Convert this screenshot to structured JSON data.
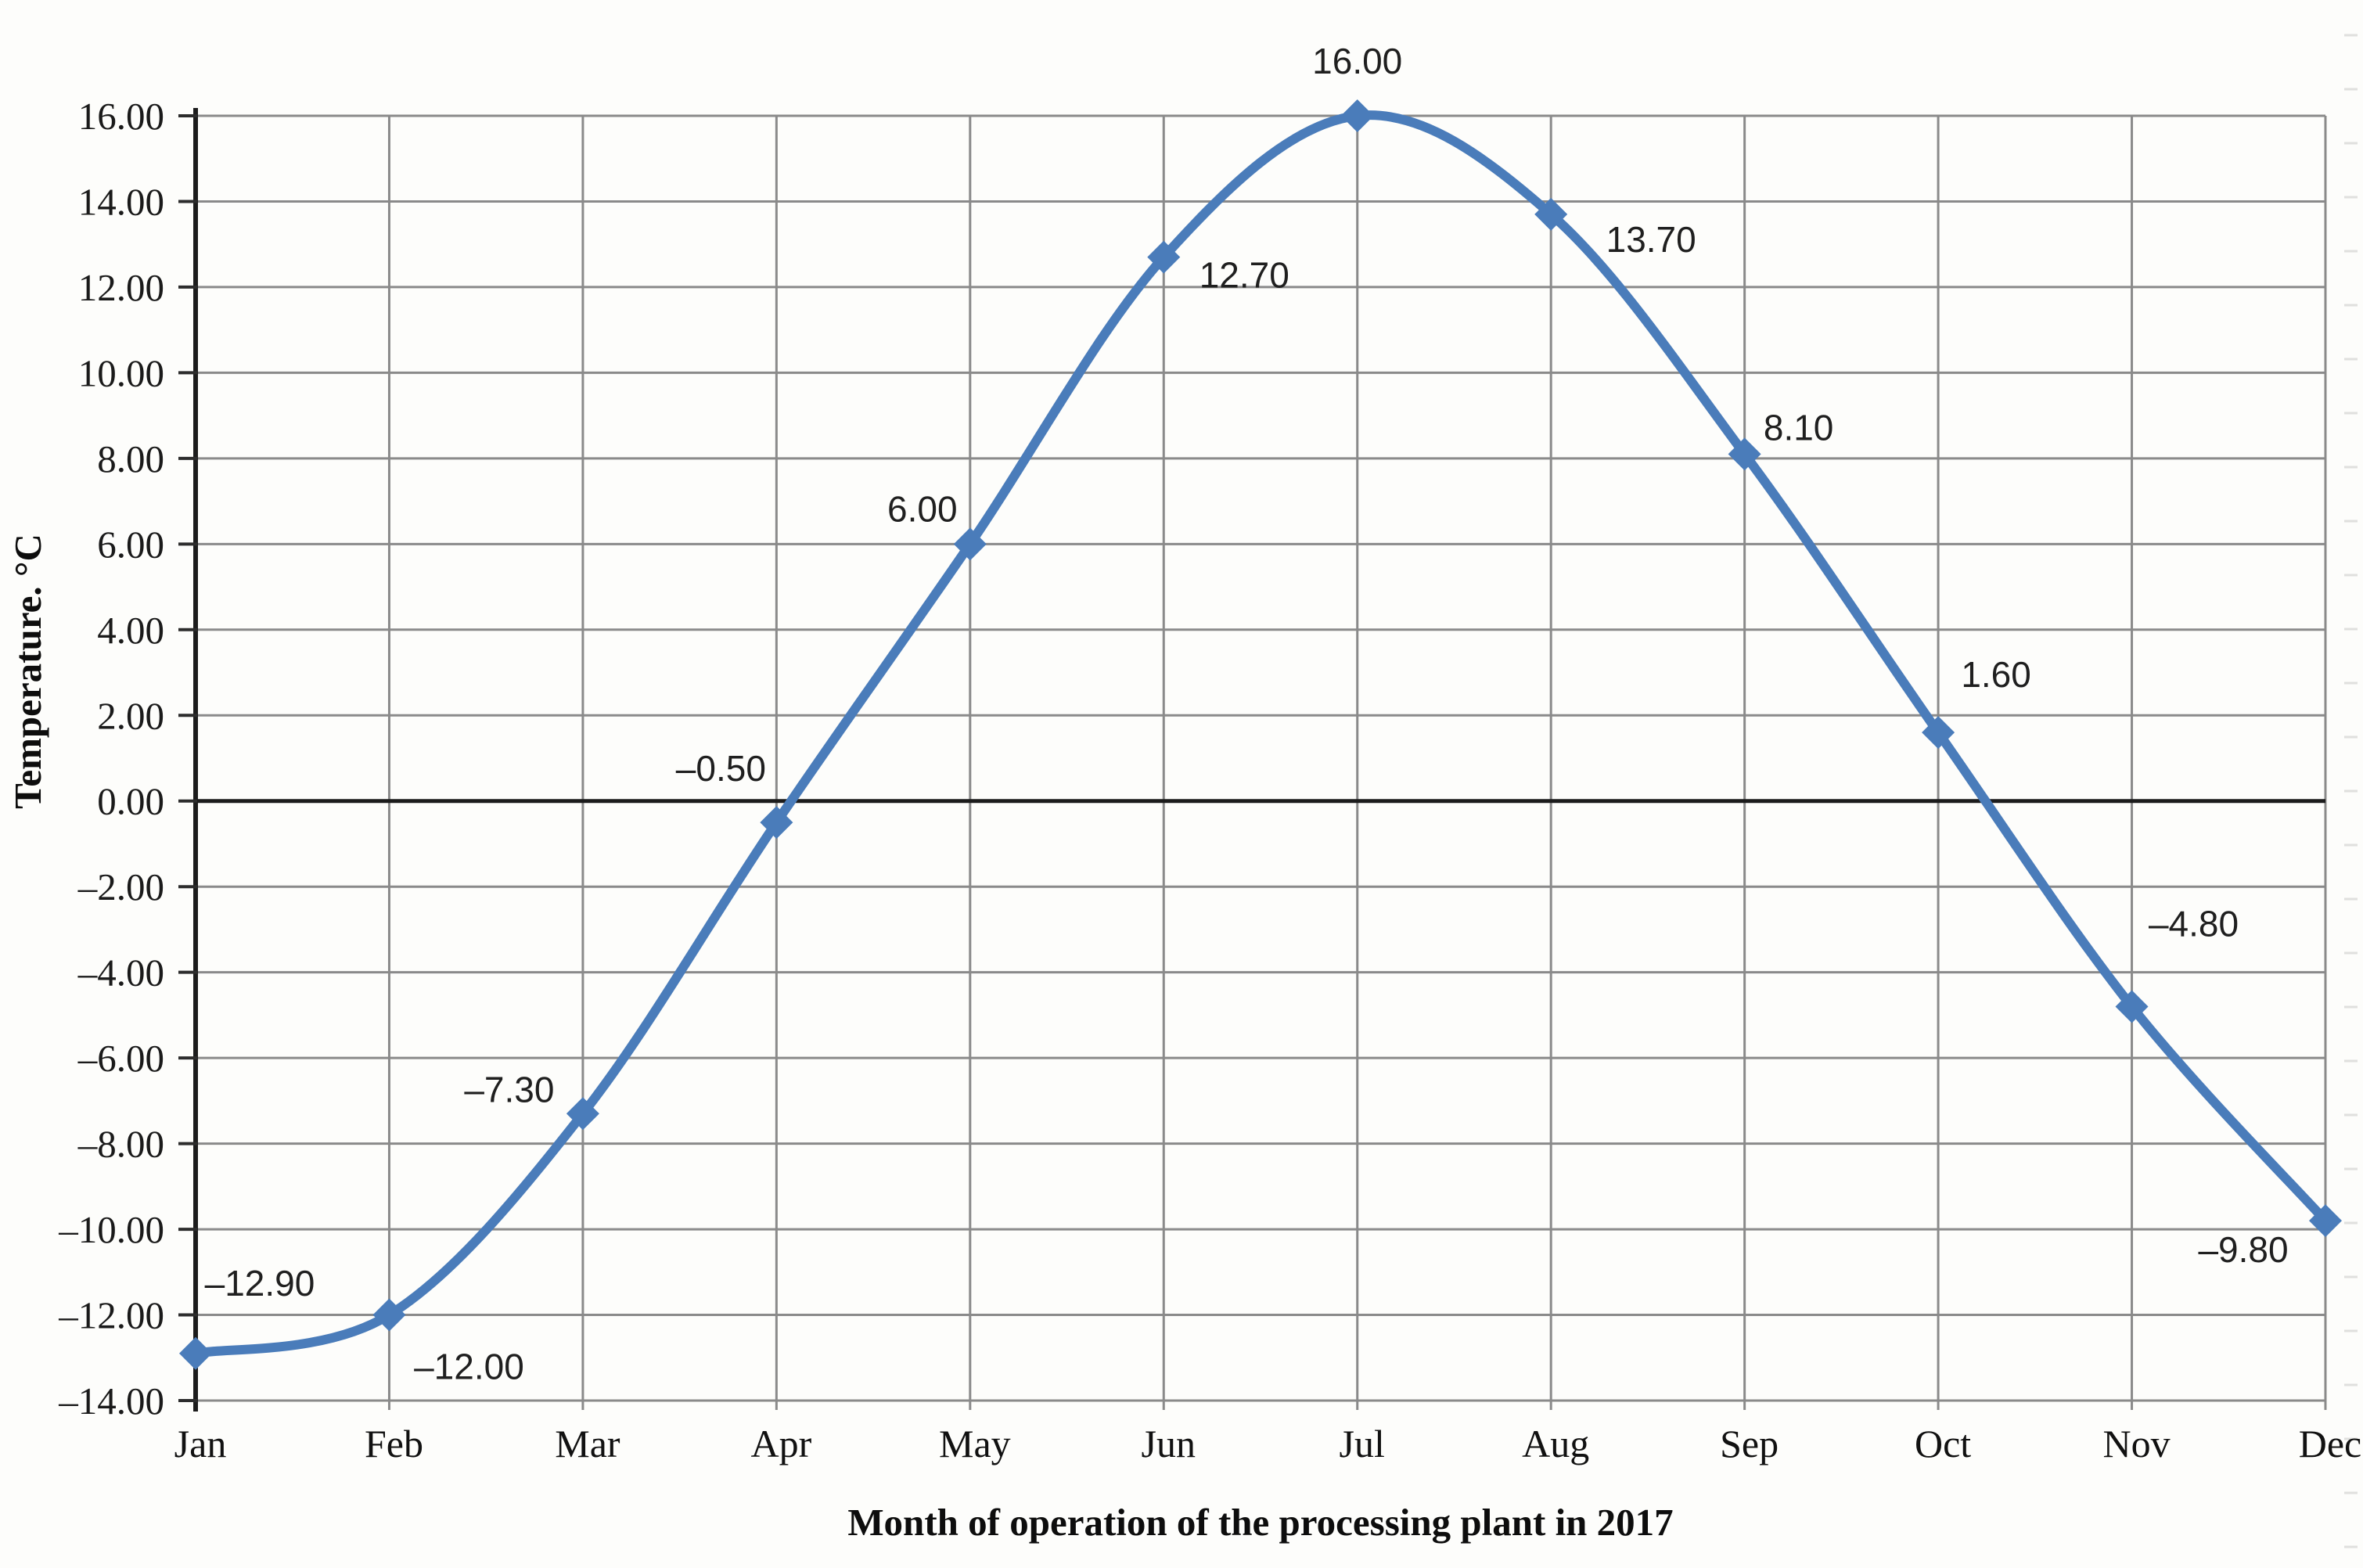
{
  "chart_data": {
    "type": "line",
    "title": "",
    "categories": [
      "Jan",
      "Feb",
      "Mar",
      "Apr",
      "May",
      "Jun",
      "Jul",
      "Aug",
      "Sep",
      "Oct",
      "Nov",
      "Dec"
    ],
    "series": [
      {
        "name": "Temperature",
        "values": [
          -12.9,
          -12.0,
          -7.3,
          -0.5,
          6.0,
          12.7,
          16.0,
          13.7,
          8.1,
          1.6,
          -4.8,
          -9.8
        ]
      }
    ],
    "point_labels": [
      "–12.90",
      "–12.00",
      "–7.30",
      "–0.50",
      "6.00",
      "12.70",
      "16.00",
      "13.70",
      "8.10",
      "1.60",
      "–4.80",
      "–9.80"
    ],
    "xlabel": "Month of operation of the processing plant in 2017",
    "ylabel": "Temperature. °C",
    "ylim": [
      -14,
      16
    ],
    "y_step": 2,
    "y_tick_labels": [
      "16.00",
      "14.00",
      "12.00",
      "10.00",
      "8.00",
      "6.00",
      "4.00",
      "2.00",
      "0.00",
      "–2.00",
      "–4.00",
      "–6.00",
      "–8.00",
      "–10.00",
      "–12.00",
      "–14.00"
    ],
    "grid": true,
    "legend": "none",
    "line_smooth": true,
    "marker": "diamond",
    "colors": {
      "line": "#4a7cba",
      "grid": "#8a8a8a",
      "zero_axis": "#1c1c1c",
      "text": "#1a1a1a",
      "background": "#fdfdfb"
    }
  }
}
